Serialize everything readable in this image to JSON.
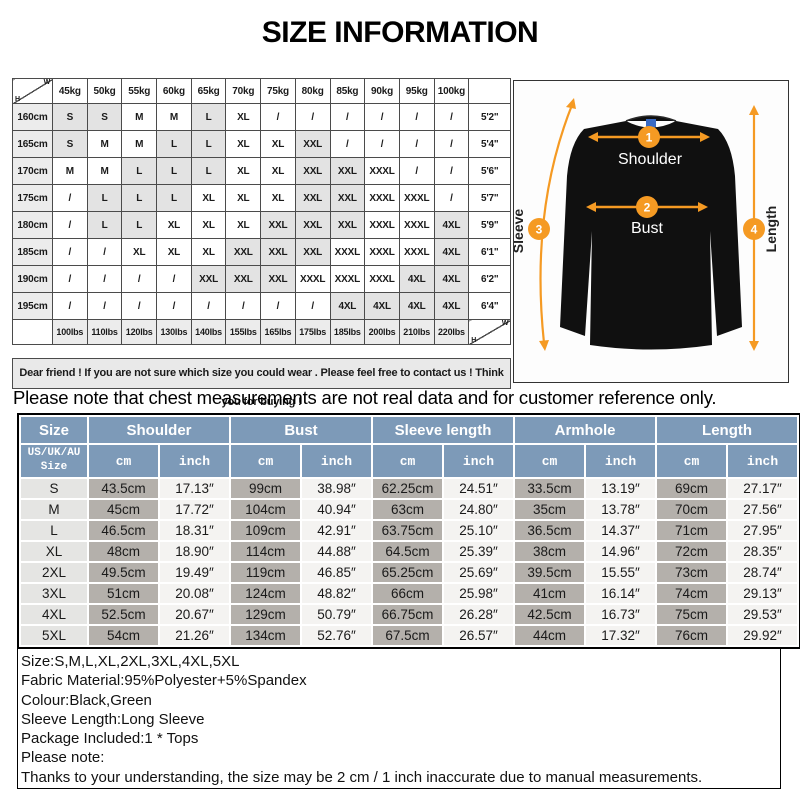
{
  "title": "SIZE INFORMATION",
  "colors": {
    "header_blue": "#7d9ab8",
    "cm_cell_gray": "#b4b0ab",
    "inch_cell": "#f4f3f1",
    "matrix_shade": "#e3e3e3",
    "arrow_orange": "#f59a23",
    "collar_tag_blue": "#3a6bc4"
  },
  "matrix": {
    "corner": {
      "h": "H",
      "w": "W"
    },
    "weight_headers": [
      "45kg",
      "50kg",
      "55kg",
      "60kg",
      "65kg",
      "70kg",
      "75kg",
      "80kg",
      "85kg",
      "90kg",
      "95kg",
      "100kg"
    ],
    "rows": [
      {
        "height_cm": "160cm",
        "cells": [
          "S",
          "S",
          "M",
          "M",
          "L",
          "XL",
          "/",
          "/",
          "/",
          "/",
          "/",
          "/"
        ],
        "height_ft": "5'2\""
      },
      {
        "height_cm": "165cm",
        "cells": [
          "S",
          "M",
          "M",
          "L",
          "L",
          "XL",
          "XL",
          "XXL",
          "/",
          "/",
          "/",
          "/"
        ],
        "height_ft": "5'4\""
      },
      {
        "height_cm": "170cm",
        "cells": [
          "M",
          "M",
          "L",
          "L",
          "L",
          "XL",
          "XL",
          "XXL",
          "XXL",
          "XXXL",
          "/",
          "/"
        ],
        "height_ft": "5'6\""
      },
      {
        "height_cm": "175cm",
        "cells": [
          "/",
          "L",
          "L",
          "L",
          "XL",
          "XL",
          "XL",
          "XXL",
          "XXL",
          "XXXL",
          "XXXL",
          "/"
        ],
        "height_ft": "5'7\""
      },
      {
        "height_cm": "180cm",
        "cells": [
          "/",
          "L",
          "L",
          "XL",
          "XL",
          "XL",
          "XXL",
          "XXL",
          "XXL",
          "XXXL",
          "XXXL",
          "4XL"
        ],
        "height_ft": "5'9\""
      },
      {
        "height_cm": "185cm",
        "cells": [
          "/",
          "/",
          "XL",
          "XL",
          "XL",
          "XXL",
          "XXL",
          "XXL",
          "XXXL",
          "XXXL",
          "XXXL",
          "4XL"
        ],
        "height_ft": "6'1\""
      },
      {
        "height_cm": "190cm",
        "cells": [
          "/",
          "/",
          "/",
          "/",
          "XXL",
          "XXL",
          "XXL",
          "XXXL",
          "XXXL",
          "XXXL",
          "4XL",
          "4XL"
        ],
        "height_ft": "6'2\""
      },
      {
        "height_cm": "195cm",
        "cells": [
          "/",
          "/",
          "/",
          "/",
          "/",
          "/",
          "/",
          "/",
          "4XL",
          "4XL",
          "4XL",
          "4XL"
        ],
        "height_ft": "6'4\""
      }
    ],
    "pounds_row": [
      "100lbs",
      "110lbs",
      "120lbs",
      "130lbs",
      "140lbs",
      "155lbs",
      "165lbs",
      "175lbs",
      "185lbs",
      "200lbs",
      "210lbs",
      "220lbs"
    ],
    "note": "Dear friend ! If you are not sure which size you could wear . Please feel free to contact us ! Think you for buying !"
  },
  "diagram": {
    "shoulder": {
      "num": "1",
      "label": "Shoulder"
    },
    "bust": {
      "num": "2",
      "label": "Bust"
    },
    "sleeve": {
      "num": "3",
      "label": "Sleeve"
    },
    "length": {
      "num": "4",
      "label": "Length"
    }
  },
  "notice": "Please note that chest measurements  are not real data and for customer reference only.",
  "size_table": {
    "group_headers": [
      "Size",
      "Shoulder",
      "Bust",
      "Sleeve length",
      "Armhole",
      "Length"
    ],
    "sub_size_header": "US/UK/AU Size",
    "unit_cm": "cm",
    "unit_inch": "inch",
    "rows": [
      {
        "size": "S",
        "values": [
          "43.5cm",
          "17.13″",
          "99cm",
          "38.98″",
          "62.25cm",
          "24.51″",
          "33.5cm",
          "13.19″",
          "69cm",
          "27.17″"
        ]
      },
      {
        "size": "M",
        "values": [
          "45cm",
          "17.72″",
          "104cm",
          "40.94″",
          "63cm",
          "24.80″",
          "35cm",
          "13.78″",
          "70cm",
          "27.56″"
        ]
      },
      {
        "size": "L",
        "values": [
          "46.5cm",
          "18.31″",
          "109cm",
          "42.91″",
          "63.75cm",
          "25.10″",
          "36.5cm",
          "14.37″",
          "71cm",
          "27.95″"
        ]
      },
      {
        "size": "XL",
        "values": [
          "48cm",
          "18.90″",
          "114cm",
          "44.88″",
          "64.5cm",
          "25.39″",
          "38cm",
          "14.96″",
          "72cm",
          "28.35″"
        ]
      },
      {
        "size": "2XL",
        "values": [
          "49.5cm",
          "19.49″",
          "119cm",
          "46.85″",
          "65.25cm",
          "25.69″",
          "39.5cm",
          "15.55″",
          "73cm",
          "28.74″"
        ]
      },
      {
        "size": "3XL",
        "values": [
          "51cm",
          "20.08″",
          "124cm",
          "48.82″",
          "66cm",
          "25.98″",
          "41cm",
          "16.14″",
          "74cm",
          "29.13″"
        ]
      },
      {
        "size": "4XL",
        "values": [
          "52.5cm",
          "20.67″",
          "129cm",
          "50.79″",
          "66.75cm",
          "26.28″",
          "42.5cm",
          "16.73″",
          "75cm",
          "29.53″"
        ]
      },
      {
        "size": "5XL",
        "values": [
          "54cm",
          "21.26″",
          "134cm",
          "52.76″",
          "67.5cm",
          "26.57″",
          "44cm",
          "17.32″",
          "76cm",
          "29.92″"
        ]
      }
    ]
  },
  "details": [
    "Size:S,M,L,XL,2XL,3XL,4XL,5XL",
    "Fabric Material:95%Polyester+5%Spandex",
    "Colour:Black,Green",
    "Sleeve Length:Long Sleeve",
    "Package Included:1 * Tops",
    "Please note:",
    "Thanks to your understanding, the size may be 2 cm / 1 inch inaccurate due to manual measurements."
  ]
}
